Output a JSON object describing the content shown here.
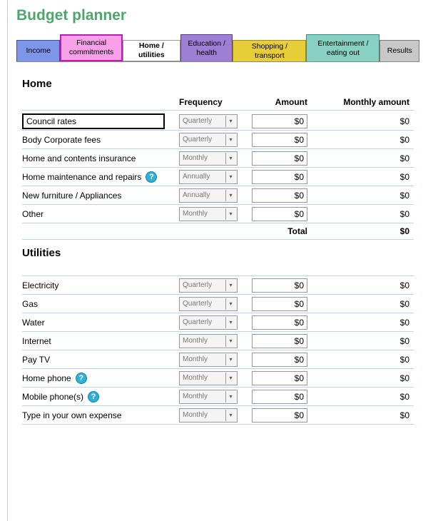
{
  "title": "Budget planner",
  "title_color": "#4da66b",
  "tabs": [
    {
      "label": "Income",
      "bg": "#7e96e8"
    },
    {
      "label": "Financial commitments",
      "bg": "#f8a1e8"
    },
    {
      "label": "Home / utilities",
      "bg": "#ffffff"
    },
    {
      "label": "Education / health",
      "bg": "#9d7fd4"
    },
    {
      "label": "Shopping / transport",
      "bg": "#e8cd3a"
    },
    {
      "label": "Entertainment / eating out",
      "bg": "#88d0c1"
    },
    {
      "label": "Results",
      "bg": "#c8c8c8"
    }
  ],
  "headers": {
    "frequency": "Frequency",
    "amount": "Amount",
    "monthly": "Monthly amount"
  },
  "sections": {
    "home": {
      "title": "Home",
      "rows": [
        {
          "label": "Council rates",
          "freq": "Quarterly",
          "amount": "$0",
          "monthly": "$0",
          "boxed": true,
          "help": false
        },
        {
          "label": "Body Corporate fees",
          "freq": "Quarterly",
          "amount": "$0",
          "monthly": "$0",
          "boxed": false,
          "help": false
        },
        {
          "label": "Home and contents insurance",
          "freq": "Monthly",
          "amount": "$0",
          "monthly": "$0",
          "boxed": false,
          "help": false
        },
        {
          "label": "Home maintenance and repairs",
          "freq": "Annually",
          "amount": "$0",
          "monthly": "$0",
          "boxed": false,
          "help": true
        },
        {
          "label": "New furniture / Appliances",
          "freq": "Annually",
          "amount": "$0",
          "monthly": "$0",
          "boxed": false,
          "help": false
        },
        {
          "label": "Other",
          "freq": "Monthly",
          "amount": "$0",
          "monthly": "$0",
          "boxed": false,
          "help": false
        }
      ],
      "total_label": "Total",
      "total_value": "$0"
    },
    "utilities": {
      "title": "Utilities",
      "rows": [
        {
          "label": "Electricity",
          "freq": "Quarterly",
          "amount": "$0",
          "monthly": "$0",
          "help": false
        },
        {
          "label": "Gas",
          "freq": "Quarterly",
          "amount": "$0",
          "monthly": "$0",
          "help": false
        },
        {
          "label": "Water",
          "freq": "Quarterly",
          "amount": "$0",
          "monthly": "$0",
          "help": false
        },
        {
          "label": "Internet",
          "freq": "Monthly",
          "amount": "$0",
          "monthly": "$0",
          "help": false
        },
        {
          "label": "Pay TV",
          "freq": "Monthly",
          "amount": "$0",
          "monthly": "$0",
          "help": false
        },
        {
          "label": "Home phone",
          "freq": "Monthly",
          "amount": "$0",
          "monthly": "$0",
          "help": true
        },
        {
          "label": "Mobile phone(s)",
          "freq": "Monthly",
          "amount": "$0",
          "monthly": "$0",
          "help": true
        },
        {
          "label": "Type in your own expense",
          "freq": "Monthly",
          "amount": "$0",
          "monthly": "$0",
          "help": false
        }
      ]
    }
  },
  "colors": {
    "row_border": "#bbd4f0",
    "select_bg": "#f4f4f4",
    "help_bg": "#2fb0d9"
  }
}
